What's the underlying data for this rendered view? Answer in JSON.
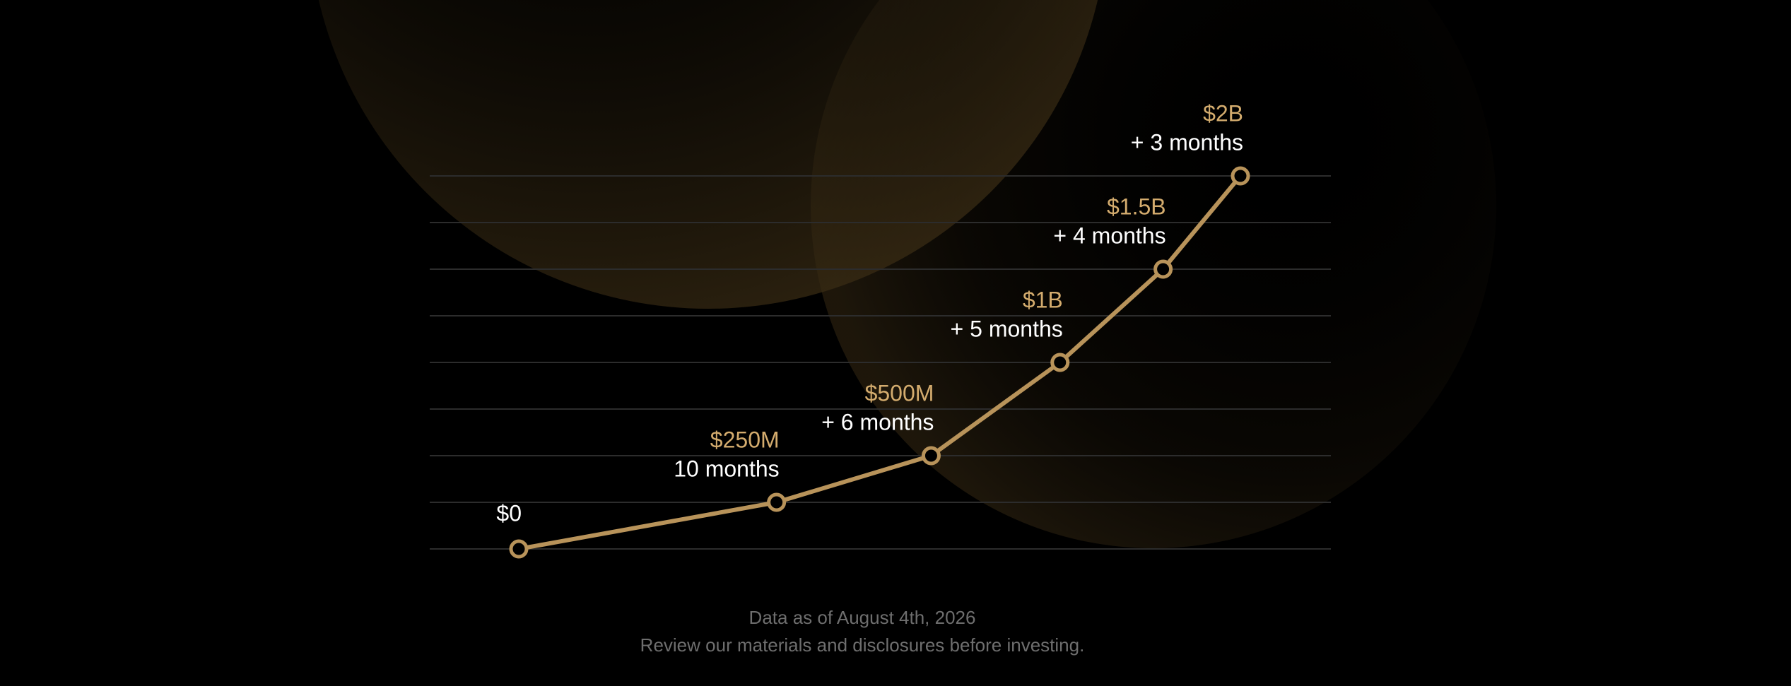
{
  "chart_data": {
    "type": "line",
    "x": [
      0,
      10,
      16,
      21,
      25,
      28
    ],
    "xlim": [
      0,
      28
    ],
    "series": [
      {
        "color": "#b8935a",
        "values": [
          0,
          250000000,
          500000000,
          1000000000,
          1500000000,
          2000000000
        ],
        "value_labels": [
          "$0",
          "$250M",
          "$500M",
          "$1B",
          "$1.5B",
          "$2B"
        ]
      }
    ],
    "duration_labels": [
      null,
      "10 months",
      "+ 6 months",
      "+ 5 months",
      "+ 4 months",
      "+ 3 months"
    ],
    "ylim": [
      0,
      2000000000
    ],
    "yticks": [
      0,
      250000000,
      500000000,
      750000000,
      1000000000,
      1250000000,
      1500000000,
      1750000000,
      2000000000
    ],
    "grid": true,
    "label_color": "#d4ac6e",
    "notes": [
      "Data as of August 4th, 2026",
      "Review our materials and disclosures before investing."
    ]
  }
}
